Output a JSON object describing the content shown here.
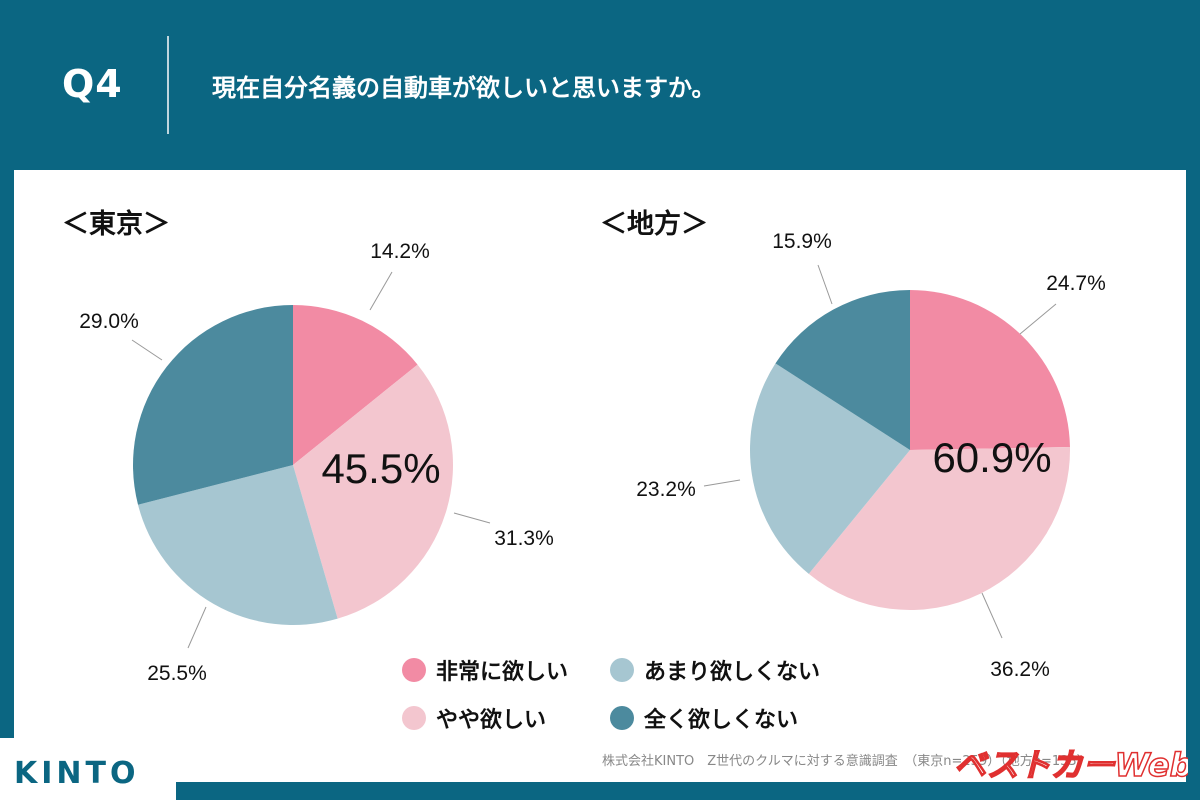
{
  "header": {
    "question_no": "Q4",
    "question": "現在自分名義の自動車が欲しいと思いますか。"
  },
  "colors": {
    "background": "#0b6682",
    "very_want": "#f28ba4",
    "somewhat_want": "#f3c6cf",
    "not_much": "#a6c6d1",
    "not_at_all": "#4c8a9e"
  },
  "chart_data": [
    {
      "type": "pie",
      "title": "＜東京＞",
      "center_label": "45.5%",
      "series": [
        {
          "name": "非常に欲しい",
          "value": 14.2,
          "label": "14.2%"
        },
        {
          "name": "やや欲しい",
          "value": 31.3,
          "label": "31.3%"
        },
        {
          "name": "あまり欲しくない",
          "value": 25.5,
          "label": "25.5%"
        },
        {
          "name": "全く欲しくない",
          "value": 29.0,
          "label": "29.0%"
        }
      ]
    },
    {
      "type": "pie",
      "title": "＜地方＞",
      "center_label": "60.9%",
      "series": [
        {
          "name": "非常に欲しい",
          "value": 24.7,
          "label": "24.7%"
        },
        {
          "name": "やや欲しい",
          "value": 36.2,
          "label": "36.2%"
        },
        {
          "name": "あまり欲しくない",
          "value": 23.2,
          "label": "23.2%"
        },
        {
          "name": "全く欲しくない",
          "value": 15.9,
          "label": "15.9%"
        }
      ]
    }
  ],
  "legend": {
    "items": [
      "非常に欲しい",
      "やや欲しい",
      "あまり欲しくない",
      "全く欲しくない"
    ]
  },
  "footer": {
    "source": "株式会社KINTO　Z世代のクルマに対する意識調査　（東京n=259）（地方n=133）",
    "brand": "KINTO",
    "watermark": "ベストカーWeb"
  }
}
